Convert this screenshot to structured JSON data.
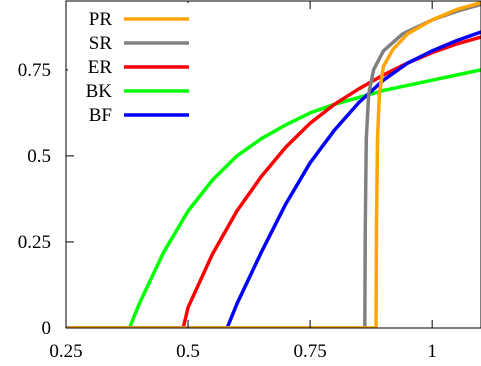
{
  "chart_data": {
    "type": "line",
    "title": "",
    "xlabel": "",
    "ylabel": "",
    "xlim": [
      0.25,
      1.1
    ],
    "ylim": [
      0,
      0.95
    ],
    "x_ticks": [
      0.25,
      0.5,
      0.75,
      1
    ],
    "x_tick_labels": [
      "0.25",
      "0.5",
      "0.75",
      "1"
    ],
    "y_ticks": [
      0,
      0.25,
      0.5,
      0.75
    ],
    "y_tick_labels": [
      "0",
      "0.25",
      "0.5",
      "0.75"
    ],
    "grid": false,
    "legend_position": "top-left",
    "series": [
      {
        "name": "PR",
        "color": "#ffa500",
        "points": [
          [
            0.25,
            0
          ],
          [
            0.885,
            0
          ],
          [
            0.886,
            0.3
          ],
          [
            0.888,
            0.55
          ],
          [
            0.892,
            0.68
          ],
          [
            0.9,
            0.76
          ],
          [
            0.92,
            0.81
          ],
          [
            0.95,
            0.855
          ],
          [
            1.0,
            0.895
          ],
          [
            1.05,
            0.925
          ],
          [
            1.1,
            0.945
          ]
        ]
      },
      {
        "name": "SR",
        "color": "#808080",
        "points": [
          [
            0.25,
            0
          ],
          [
            0.862,
            0
          ],
          [
            0.863,
            0.3
          ],
          [
            0.865,
            0.55
          ],
          [
            0.87,
            0.68
          ],
          [
            0.88,
            0.75
          ],
          [
            0.9,
            0.805
          ],
          [
            0.94,
            0.855
          ],
          [
            1.0,
            0.895
          ],
          [
            1.05,
            0.92
          ],
          [
            1.1,
            0.94
          ]
        ]
      },
      {
        "name": "ER",
        "color": "#ff0000",
        "points": [
          [
            0.25,
            0
          ],
          [
            0.49,
            0
          ],
          [
            0.5,
            0.06
          ],
          [
            0.55,
            0.215
          ],
          [
            0.6,
            0.34
          ],
          [
            0.65,
            0.44
          ],
          [
            0.7,
            0.525
          ],
          [
            0.75,
            0.595
          ],
          [
            0.8,
            0.65
          ],
          [
            0.85,
            0.695
          ],
          [
            0.9,
            0.735
          ],
          [
            0.95,
            0.77
          ],
          [
            1.0,
            0.8
          ],
          [
            1.05,
            0.825
          ],
          [
            1.1,
            0.845
          ]
        ]
      },
      {
        "name": "BK",
        "color": "#00ff00",
        "points": [
          [
            0.25,
            0
          ],
          [
            0.38,
            0
          ],
          [
            0.4,
            0.07
          ],
          [
            0.45,
            0.22
          ],
          [
            0.5,
            0.34
          ],
          [
            0.55,
            0.43
          ],
          [
            0.6,
            0.5
          ],
          [
            0.65,
            0.55
          ],
          [
            0.7,
            0.59
          ],
          [
            0.75,
            0.625
          ],
          [
            0.8,
            0.65
          ],
          [
            0.85,
            0.67
          ],
          [
            0.9,
            0.69
          ],
          [
            0.95,
            0.705
          ],
          [
            1.0,
            0.72
          ],
          [
            1.05,
            0.735
          ],
          [
            1.1,
            0.75
          ]
        ]
      },
      {
        "name": "BF",
        "color": "#0000ff",
        "points": [
          [
            0.25,
            0
          ],
          [
            0.58,
            0
          ],
          [
            0.6,
            0.07
          ],
          [
            0.65,
            0.22
          ],
          [
            0.7,
            0.36
          ],
          [
            0.75,
            0.48
          ],
          [
            0.8,
            0.575
          ],
          [
            0.85,
            0.655
          ],
          [
            0.9,
            0.72
          ],
          [
            0.95,
            0.77
          ],
          [
            1.0,
            0.805
          ],
          [
            1.05,
            0.835
          ],
          [
            1.1,
            0.86
          ]
        ]
      }
    ]
  }
}
